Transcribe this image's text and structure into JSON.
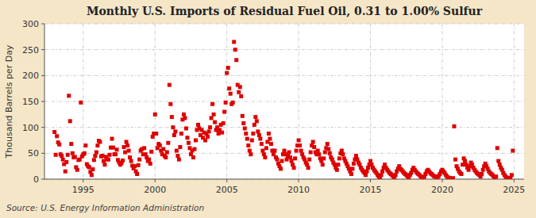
{
  "chart_data": {
    "type": "scatter",
    "title": "Monthly U.S. Imports of Residual Fuel Oil, 0.31 to 1.00% Sulfur",
    "ylabel": "Thousand Barrels per Day",
    "source": "Source: U.S. Energy Information Administration",
    "color": "#dd0000",
    "marker": "square",
    "grid": true,
    "xlim": [
      1992.3,
      2025.7
    ],
    "xticks": [
      1995,
      2000,
      2005,
      2010,
      2015,
      2020,
      2025
    ],
    "ylim": [
      0,
      300
    ],
    "yticks": [
      0,
      50,
      100,
      150,
      200,
      250,
      300
    ],
    "x": [
      1993.0,
      1993.083,
      1993.167,
      1993.25,
      1993.333,
      1993.417,
      1993.5,
      1993.583,
      1993.667,
      1993.75,
      1993.833,
      1993.917,
      1994.0,
      1994.083,
      1994.167,
      1994.25,
      1994.333,
      1994.417,
      1994.5,
      1994.583,
      1994.667,
      1994.75,
      1994.833,
      1994.917,
      1995.0,
      1995.083,
      1995.167,
      1995.25,
      1995.333,
      1995.417,
      1995.5,
      1995.583,
      1995.667,
      1995.75,
      1995.833,
      1995.917,
      1996.0,
      1996.083,
      1996.167,
      1996.25,
      1996.333,
      1996.417,
      1996.5,
      1996.583,
      1996.667,
      1996.75,
      1996.833,
      1996.917,
      1997.0,
      1997.083,
      1997.167,
      1997.25,
      1997.333,
      1997.417,
      1997.5,
      1997.583,
      1997.667,
      1997.75,
      1997.833,
      1997.917,
      1998.0,
      1998.083,
      1998.167,
      1998.25,
      1998.333,
      1998.417,
      1998.5,
      1998.583,
      1998.667,
      1998.75,
      1998.833,
      1998.917,
      1999.0,
      1999.083,
      1999.167,
      1999.25,
      1999.333,
      1999.417,
      1999.5,
      1999.583,
      1999.667,
      1999.75,
      1999.833,
      1999.917,
      2000.0,
      2000.083,
      2000.167,
      2000.25,
      2000.333,
      2000.417,
      2000.5,
      2000.583,
      2000.667,
      2000.75,
      2000.833,
      2000.917,
      2001.0,
      2001.083,
      2001.167,
      2001.25,
      2001.333,
      2001.417,
      2001.5,
      2001.583,
      2001.667,
      2001.75,
      2001.833,
      2001.917,
      2002.0,
      2002.083,
      2002.167,
      2002.25,
      2002.333,
      2002.417,
      2002.5,
      2002.583,
      2002.667,
      2002.75,
      2002.833,
      2002.917,
      2003.0,
      2003.083,
      2003.167,
      2003.25,
      2003.333,
      2003.417,
      2003.5,
      2003.583,
      2003.667,
      2003.75,
      2003.833,
      2003.917,
      2004.0,
      2004.083,
      2004.167,
      2004.25,
      2004.333,
      2004.417,
      2004.5,
      2004.583,
      2004.667,
      2004.75,
      2004.833,
      2004.917,
      2005.0,
      2005.083,
      2005.167,
      2005.25,
      2005.333,
      2005.417,
      2005.5,
      2005.583,
      2005.667,
      2005.75,
      2005.833,
      2005.917,
      2006.0,
      2006.083,
      2006.167,
      2006.25,
      2006.333,
      2006.417,
      2006.5,
      2006.583,
      2006.667,
      2006.75,
      2006.833,
      2006.917,
      2007.0,
      2007.083,
      2007.167,
      2007.25,
      2007.333,
      2007.417,
      2007.5,
      2007.583,
      2007.667,
      2007.75,
      2007.833,
      2007.917,
      2008.0,
      2008.083,
      2008.167,
      2008.25,
      2008.333,
      2008.417,
      2008.5,
      2008.583,
      2008.667,
      2008.75,
      2008.833,
      2008.917,
      2009.0,
      2009.083,
      2009.167,
      2009.25,
      2009.333,
      2009.417,
      2009.5,
      2009.583,
      2009.667,
      2009.75,
      2009.833,
      2009.917,
      2010.0,
      2010.083,
      2010.167,
      2010.25,
      2010.333,
      2010.417,
      2010.5,
      2010.583,
      2010.667,
      2010.75,
      2010.833,
      2010.917,
      2011.0,
      2011.083,
      2011.167,
      2011.25,
      2011.333,
      2011.417,
      2011.5,
      2011.583,
      2011.667,
      2011.75,
      2011.833,
      2011.917,
      2012.0,
      2012.083,
      2012.167,
      2012.25,
      2012.333,
      2012.417,
      2012.5,
      2012.583,
      2012.667,
      2012.75,
      2012.833,
      2012.917,
      2013.0,
      2013.083,
      2013.167,
      2013.25,
      2013.333,
      2013.417,
      2013.5,
      2013.583,
      2013.667,
      2013.75,
      2013.833,
      2013.917,
      2014.0,
      2014.083,
      2014.167,
      2014.25,
      2014.333,
      2014.417,
      2014.5,
      2014.583,
      2014.667,
      2014.75,
      2014.833,
      2014.917,
      2015.0,
      2015.083,
      2015.167,
      2015.25,
      2015.333,
      2015.417,
      2015.5,
      2015.583,
      2015.667,
      2015.75,
      2015.833,
      2015.917,
      2016.0,
      2016.083,
      2016.167,
      2016.25,
      2016.333,
      2016.417,
      2016.5,
      2016.583,
      2016.667,
      2016.75,
      2016.833,
      2016.917,
      2017.0,
      2017.083,
      2017.167,
      2017.25,
      2017.333,
      2017.417,
      2017.5,
      2017.583,
      2017.667,
      2017.75,
      2017.833,
      2017.917,
      2018.0,
      2018.083,
      2018.167,
      2018.25,
      2018.333,
      2018.417,
      2018.5,
      2018.583,
      2018.667,
      2018.75,
      2018.833,
      2018.917,
      2019.0,
      2019.083,
      2019.167,
      2019.25,
      2019.333,
      2019.417,
      2019.5,
      2019.583,
      2019.667,
      2019.75,
      2019.833,
      2019.917,
      2020.0,
      2020.083,
      2020.167,
      2020.25,
      2020.333,
      2020.417,
      2020.5,
      2020.583,
      2020.667,
      2020.75,
      2020.833,
      2020.917,
      2021.0,
      2021.083,
      2021.167,
      2021.25,
      2021.333,
      2021.417,
      2021.5,
      2021.583,
      2021.667,
      2021.75,
      2021.833,
      2021.917,
      2022.0,
      2022.083,
      2022.167,
      2022.25,
      2022.333,
      2022.417,
      2022.5,
      2022.583,
      2022.667,
      2022.75,
      2022.833,
      2022.917,
      2023.0,
      2023.083,
      2023.167,
      2023.25,
      2023.333,
      2023.417,
      2023.5,
      2023.583,
      2023.667,
      2023.75,
      2023.833,
      2023.917,
      2024.0,
      2024.083,
      2024.167,
      2024.25,
      2024.333,
      2024.417,
      2024.5,
      2024.583,
      2024.667,
      2024.75,
      2024.833,
      2024.917
    ],
    "values": [
      91,
      47,
      83,
      71,
      67,
      48,
      45,
      38,
      29,
      15,
      33,
      47,
      161,
      112,
      68,
      50,
      42,
      43,
      23,
      18,
      37,
      38,
      148,
      44,
      48,
      50,
      65,
      29,
      25,
      23,
      14,
      8,
      19,
      37,
      45,
      52,
      65,
      74,
      72,
      44,
      45,
      35,
      28,
      43,
      38,
      38,
      47,
      61,
      78,
      61,
      48,
      48,
      57,
      37,
      32,
      28,
      31,
      36,
      62,
      52,
      72,
      65,
      55,
      42,
      35,
      26,
      21,
      25,
      15,
      10,
      27,
      38,
      55,
      58,
      48,
      60,
      48,
      42,
      35,
      38,
      30,
      53,
      82,
      88,
      125,
      88,
      60,
      68,
      65,
      55,
      48,
      58,
      45,
      42,
      52,
      70,
      182,
      145,
      120,
      100,
      85,
      92,
      55,
      45,
      38,
      62,
      88,
      115,
      125,
      118,
      98,
      80,
      70,
      60,
      48,
      55,
      42,
      58,
      75,
      95,
      105,
      98,
      85,
      95,
      80,
      90,
      75,
      88,
      82,
      92,
      100,
      118,
      145,
      125,
      110,
      95,
      100,
      88,
      95,
      105,
      90,
      108,
      130,
      148,
      205,
      215,
      175,
      165,
      145,
      148,
      265,
      250,
      230,
      182,
      168,
      178,
      160,
      122,
      108,
      98,
      88,
      78,
      65,
      55,
      48,
      75,
      88,
      105,
      120,
      112,
      92,
      85,
      78,
      68,
      55,
      48,
      42,
      60,
      72,
      88,
      78,
      68,
      55,
      48,
      55,
      42,
      38,
      30,
      25,
      20,
      35,
      48,
      55,
      48,
      38,
      45,
      52,
      42,
      35,
      28,
      22,
      40,
      55,
      65,
      75,
      65,
      55,
      48,
      42,
      38,
      32,
      28,
      22,
      38,
      52,
      65,
      72,
      62,
      52,
      48,
      55,
      48,
      40,
      35,
      28,
      40,
      52,
      60,
      68,
      58,
      50,
      42,
      38,
      32,
      28,
      22,
      18,
      28,
      40,
      50,
      55,
      48,
      40,
      35,
      30,
      25,
      20,
      15,
      10,
      20,
      30,
      38,
      45,
      38,
      32,
      28,
      22,
      18,
      15,
      12,
      8,
      15,
      22,
      28,
      35,
      28,
      22,
      18,
      15,
      12,
      8,
      5,
      3,
      8,
      15,
      22,
      28,
      22,
      18,
      15,
      12,
      10,
      8,
      5,
      3,
      8,
      15,
      20,
      25,
      20,
      18,
      15,
      12,
      10,
      8,
      5,
      3,
      8,
      12,
      18,
      22,
      18,
      15,
      12,
      10,
      8,
      5,
      3,
      2,
      5,
      10,
      15,
      18,
      15,
      12,
      10,
      8,
      6,
      5,
      4,
      3,
      6,
      10,
      15,
      18,
      15,
      12,
      8,
      5,
      3,
      2,
      1,
      0,
      2,
      102,
      38,
      25,
      20,
      15,
      12,
      10,
      28,
      40,
      35,
      28,
      22,
      18,
      25,
      32,
      28,
      22,
      18,
      15,
      12,
      10,
      8,
      5,
      10,
      18,
      25,
      30,
      25,
      20,
      15,
      12,
      10,
      8,
      5,
      3,
      5,
      60,
      35,
      28,
      22,
      18,
      12,
      8,
      5,
      3,
      2,
      1,
      2,
      8,
      55
    ]
  }
}
